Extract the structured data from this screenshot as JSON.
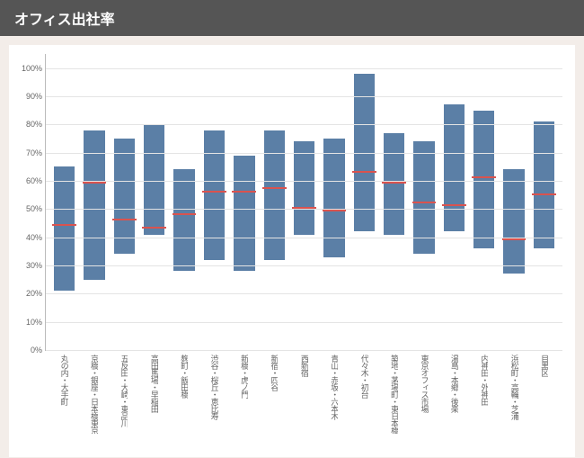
{
  "title": "オフィス出社率",
  "chart": {
    "type": "range-bar",
    "bar_color": "#5b7fa6",
    "median_color": "#d9534f",
    "background_color": "#ffffff",
    "page_background": "#f3ede9",
    "header_background": "#555555",
    "header_text_color": "#ffffff",
    "grid_color": "#e4e4e4",
    "axis_color": "#bbbbbb",
    "label_color": "#666666",
    "label_fontsize": 9,
    "ymin": 0,
    "ymax": 105,
    "yticks": [
      0,
      10,
      20,
      30,
      40,
      50,
      60,
      70,
      80,
      90,
      100
    ],
    "ytick_labels": [
      "0%",
      "10%",
      "20%",
      "30%",
      "40%",
      "50%",
      "60%",
      "70%",
      "80%",
      "90%",
      "100%"
    ],
    "bar_width": 0.7,
    "categories": [
      "丸の内・大手町",
      "京橋・銀座・日本橋東京",
      "五反田・大崎・東品川",
      "高田馬場・早稲田",
      "麹町・飯田橋",
      "渋谷・桜丘・恵比寿",
      "新橋・虎ノ門",
      "新宿・四谷",
      "西新宿",
      "青山・赤坂・六本木",
      "代々木・初台",
      "築地・茅場町・東日本橋",
      "東京オフィス市場",
      "湯島・本郷・後楽",
      "内神田・外神田",
      "浜松町・高輪・芝浦",
      "目黒区"
    ],
    "low": [
      21,
      25,
      34,
      41,
      28,
      32,
      28,
      32,
      41,
      33,
      42,
      41,
      34,
      42,
      36,
      27,
      36
    ],
    "high": [
      65,
      78,
      75,
      80,
      64,
      78,
      69,
      78,
      74,
      75,
      98,
      77,
      74,
      87,
      85,
      64,
      81
    ],
    "median": [
      44,
      59,
      46,
      43,
      48,
      56,
      56,
      57,
      50,
      49,
      63,
      59,
      52,
      51,
      61,
      39,
      55
    ]
  }
}
